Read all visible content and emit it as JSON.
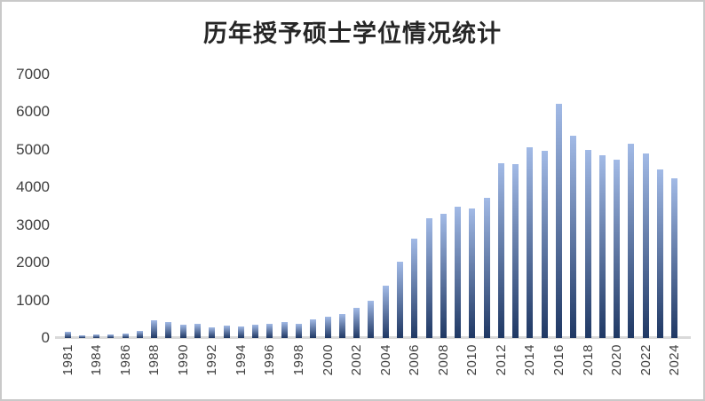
{
  "chart_data": {
    "type": "bar",
    "title": "历年授予硕士学位情况统计",
    "categories": [
      "1981",
      "1982",
      "1984",
      "1985",
      "1986",
      "1987",
      "1988",
      "1989",
      "1990",
      "1991",
      "1992",
      "1993",
      "1994",
      "1995",
      "1996",
      "1997",
      "1998",
      "1999",
      "2000",
      "2001",
      "2002",
      "2003",
      "2004",
      "2005",
      "2006",
      "2007",
      "2008",
      "2009",
      "2010",
      "2011",
      "2012",
      "2013",
      "2014",
      "2015",
      "2016",
      "2017",
      "2018",
      "2019",
      "2020",
      "2021",
      "2022",
      "2023",
      "2024"
    ],
    "values": [
      160,
      70,
      95,
      90,
      110,
      190,
      460,
      430,
      360,
      370,
      290,
      340,
      310,
      360,
      370,
      420,
      385,
      485,
      570,
      645,
      800,
      1000,
      1400,
      2020,
      2630,
      3180,
      3290,
      3500,
      3430,
      3730,
      4640,
      4620,
      5070,
      4980,
      6230,
      5380,
      5000,
      4860,
      4740,
      5160,
      4910,
      4480,
      4240
    ],
    "x_tick_labels_shown": [
      "1981",
      "1984",
      "1986",
      "1988",
      "1990",
      "1992",
      "1994",
      "1996",
      "1998",
      "2000",
      "2002",
      "2004",
      "2006",
      "2008",
      "2010",
      "2012",
      "2014",
      "2016",
      "2018",
      "2020",
      "2022",
      "2024"
    ],
    "xlabel": "",
    "ylabel": "",
    "ylim": [
      0,
      7000
    ],
    "yticks": [
      7000,
      6000,
      5000,
      4000,
      3000,
      2000,
      1000,
      0
    ],
    "grid": false,
    "legend": false,
    "colors": {
      "bar_gradient_top": "#a2bae6",
      "bar_gradient_bottom": "#1f3864",
      "axis_line": "#d9d9d9",
      "tick_label": "#404040",
      "title": "#262626",
      "frame_border": "#c9c9c9"
    }
  }
}
